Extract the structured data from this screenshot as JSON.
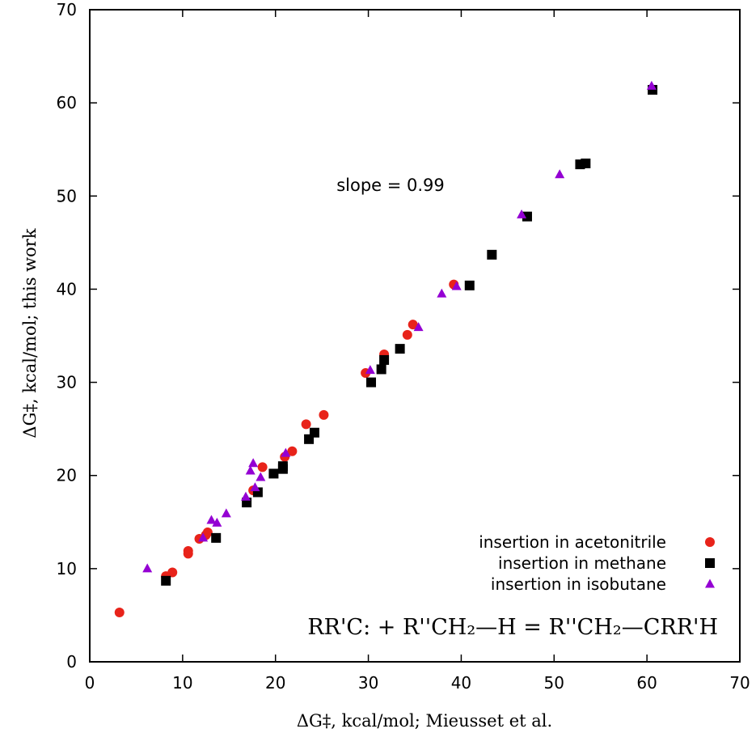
{
  "chart_data": {
    "type": "scatter",
    "xlabel": "ΔG‡, kcal/mol; Mieusset et al.",
    "ylabel": "ΔG‡, kcal/mol; this work",
    "xlim": [
      0,
      70
    ],
    "ylim": [
      0,
      70
    ],
    "x_ticks": [
      "0",
      "10",
      "20",
      "30",
      "40",
      "50",
      "60",
      "70"
    ],
    "y_ticks": [
      "0",
      "10",
      "20",
      "30",
      "40",
      "50",
      "60",
      "70"
    ],
    "grid": false,
    "legend_position": "bottom-right",
    "annotation": "slope = 0.99",
    "equation": "RR'C: + R''CH₂—H = R''CH₂—CRR'H",
    "series": [
      {
        "name": "insertion in acetonitrile",
        "marker": "circle",
        "color": "#e8231a",
        "points": [
          [
            3.2,
            5.3
          ],
          [
            8.2,
            9.2
          ],
          [
            8.9,
            9.6
          ],
          [
            10.6,
            11.6
          ],
          [
            10.6,
            11.9
          ],
          [
            11.8,
            13.2
          ],
          [
            12.5,
            13.6
          ],
          [
            12.7,
            13.9
          ],
          [
            17.6,
            18.4
          ],
          [
            18.6,
            20.9
          ],
          [
            21.0,
            22.0
          ],
          [
            21.8,
            22.6
          ],
          [
            23.3,
            25.5
          ],
          [
            25.2,
            26.5
          ],
          [
            29.7,
            31.0
          ],
          [
            31.7,
            33.0
          ],
          [
            34.2,
            35.1
          ],
          [
            34.8,
            36.2
          ],
          [
            39.2,
            40.5
          ]
        ]
      },
      {
        "name": "insertion in methane",
        "marker": "square",
        "color": "#000000",
        "points": [
          [
            8.2,
            8.7
          ],
          [
            13.6,
            13.3
          ],
          [
            16.9,
            17.1
          ],
          [
            18.1,
            18.2
          ],
          [
            19.8,
            20.2
          ],
          [
            20.8,
            20.7
          ],
          [
            20.8,
            21.0
          ],
          [
            23.6,
            23.9
          ],
          [
            24.2,
            24.6
          ],
          [
            30.3,
            30.0
          ],
          [
            31.4,
            31.4
          ],
          [
            31.7,
            32.4
          ],
          [
            33.4,
            33.6
          ],
          [
            40.9,
            40.4
          ],
          [
            43.3,
            43.7
          ],
          [
            47.1,
            47.8
          ],
          [
            52.8,
            53.4
          ],
          [
            53.4,
            53.5
          ],
          [
            60.6,
            61.4
          ]
        ]
      },
      {
        "name": "insertion in isobutane",
        "marker": "triangle",
        "color": "#9400d3",
        "points": [
          [
            6.2,
            10.0
          ],
          [
            12.2,
            13.3
          ],
          [
            13.1,
            15.2
          ],
          [
            13.7,
            14.9
          ],
          [
            14.7,
            15.9
          ],
          [
            16.8,
            17.7
          ],
          [
            17.3,
            20.5
          ],
          [
            17.6,
            21.3
          ],
          [
            17.8,
            18.7
          ],
          [
            18.4,
            19.8
          ],
          [
            21.1,
            22.4
          ],
          [
            30.2,
            31.3
          ],
          [
            35.4,
            35.9
          ],
          [
            37.9,
            39.5
          ],
          [
            39.5,
            40.3
          ],
          [
            46.5,
            48.0
          ],
          [
            50.6,
            52.3
          ],
          [
            60.5,
            61.8
          ]
        ]
      }
    ]
  }
}
